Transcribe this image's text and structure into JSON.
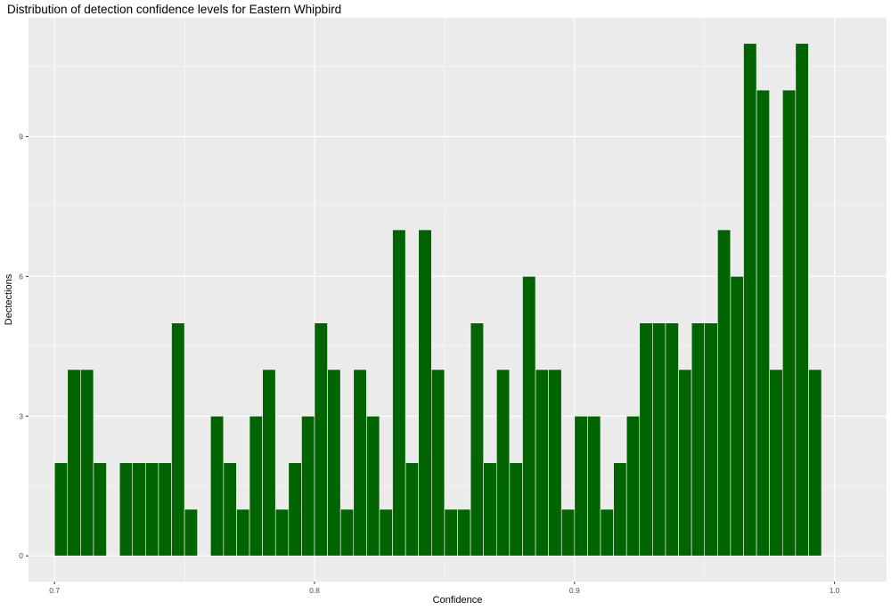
{
  "chart_data": {
    "type": "bar",
    "title": "Distribution of detection confidence levels for Eastern Whipbird",
    "xlabel": "Confidence",
    "ylabel": "Dectections",
    "xlim": [
      0.69,
      1.02
    ],
    "ylim": [
      -0.55,
      11.55
    ],
    "x_ticks": [
      0.7,
      0.8,
      0.9,
      1.0
    ],
    "x_tick_labels": [
      "0.7",
      "0.8",
      "0.9",
      "1.0"
    ],
    "y_ticks": [
      0,
      3,
      6,
      9
    ],
    "y_tick_labels": [
      "0",
      "3",
      "6",
      "9"
    ],
    "bin_width": 0.005,
    "bin_start": 0.7025,
    "values": [
      2,
      4,
      4,
      2,
      0,
      2,
      2,
      2,
      2,
      5,
      1,
      0,
      3,
      2,
      1,
      3,
      4,
      1,
      2,
      3,
      5,
      4,
      1,
      4,
      3,
      1,
      7,
      2,
      7,
      4,
      1,
      1,
      5,
      2,
      4,
      2,
      6,
      4,
      4,
      1,
      3,
      3,
      1,
      2,
      3,
      5,
      5,
      5,
      4,
      5,
      5,
      7,
      6,
      11,
      10,
      4,
      10,
      11,
      4
    ],
    "bar_color": "#006400",
    "bar_outline": "#ffffff",
    "panel_background": "#ebebeb",
    "grid": true,
    "grid_color": "#ffffff",
    "legend": "none"
  }
}
